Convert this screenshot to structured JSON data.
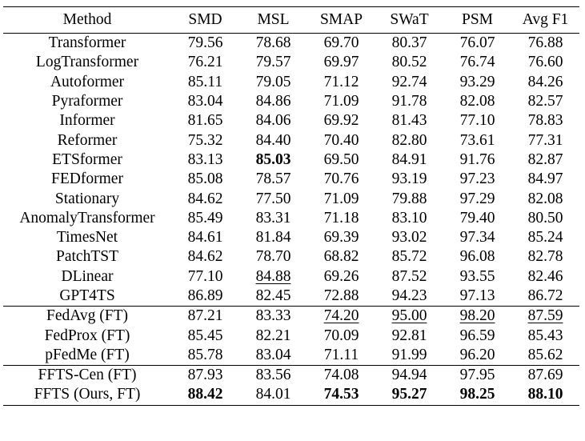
{
  "header": [
    "Method",
    "SMD",
    "MSL",
    "SMAP",
    "SWaT",
    "PSM",
    "Avg F1"
  ],
  "groups": [
    {
      "rows": [
        {
          "method": "Transformer",
          "values": [
            "79.56",
            "78.68",
            "69.70",
            "80.37",
            "76.07",
            "76.88"
          ]
        },
        {
          "method": "LogTransformer",
          "values": [
            "76.21",
            "79.57",
            "69.97",
            "80.52",
            "76.74",
            "76.60"
          ]
        },
        {
          "method": "Autoformer",
          "values": [
            "85.11",
            "79.05",
            "71.12",
            "92.74",
            "93.29",
            "84.26"
          ]
        },
        {
          "method": "Pyraformer",
          "values": [
            "83.04",
            "84.86",
            "71.09",
            "91.78",
            "82.08",
            "82.57"
          ]
        },
        {
          "method": "Informer",
          "values": [
            "81.65",
            "84.06",
            "69.92",
            "81.43",
            "77.10",
            "78.83"
          ]
        },
        {
          "method": "Reformer",
          "values": [
            "75.32",
            "84.40",
            "70.40",
            "82.80",
            "73.61",
            "77.31"
          ]
        },
        {
          "method": "ETSformer",
          "values": [
            "83.13",
            "85.03",
            "69.50",
            "84.91",
            "91.76",
            "82.87"
          ]
        },
        {
          "method": "FEDformer",
          "values": [
            "85.08",
            "78.57",
            "70.76",
            "93.19",
            "97.23",
            "84.97"
          ]
        },
        {
          "method": "Stationary",
          "values": [
            "84.62",
            "77.50",
            "71.09",
            "79.88",
            "97.29",
            "82.08"
          ]
        },
        {
          "method": "AnomalyTransformer",
          "values": [
            "85.49",
            "83.31",
            "71.18",
            "83.10",
            "79.40",
            "80.50"
          ]
        },
        {
          "method": "TimesNet",
          "values": [
            "84.61",
            "81.84",
            "69.39",
            "93.02",
            "97.34",
            "85.24"
          ]
        },
        {
          "method": "PatchTST",
          "values": [
            "84.62",
            "78.70",
            "68.82",
            "85.72",
            "96.08",
            "82.78"
          ]
        },
        {
          "method": "DLinear",
          "values": [
            "77.10",
            "84.88",
            "69.26",
            "87.52",
            "93.55",
            "82.46"
          ]
        },
        {
          "method": "GPT4TS",
          "values": [
            "86.89",
            "82.45",
            "72.88",
            "94.23",
            "97.13",
            "86.72"
          ]
        }
      ]
    },
    {
      "rows": [
        {
          "method": "FedAvg (FT)",
          "values": [
            "87.21",
            "83.33",
            "74.20",
            "95.00",
            "98.20",
            "87.59"
          ]
        },
        {
          "method": "FedProx (FT)",
          "values": [
            "85.45",
            "82.21",
            "70.09",
            "92.81",
            "96.59",
            "85.43"
          ]
        },
        {
          "method": "pFedMe (FT)",
          "values": [
            "85.78",
            "83.04",
            "71.11",
            "91.99",
            "96.20",
            "85.62"
          ]
        }
      ]
    },
    {
      "rows": [
        {
          "method": "FFTS-Cen (FT)",
          "values": [
            "87.93",
            "83.56",
            "74.08",
            "94.94",
            "97.95",
            "87.69"
          ]
        },
        {
          "method": "FFTS (Ours, FT)",
          "values": [
            "88.42",
            "84.01",
            "74.53",
            "95.27",
            "98.25",
            "88.10"
          ]
        }
      ]
    }
  ]
}
